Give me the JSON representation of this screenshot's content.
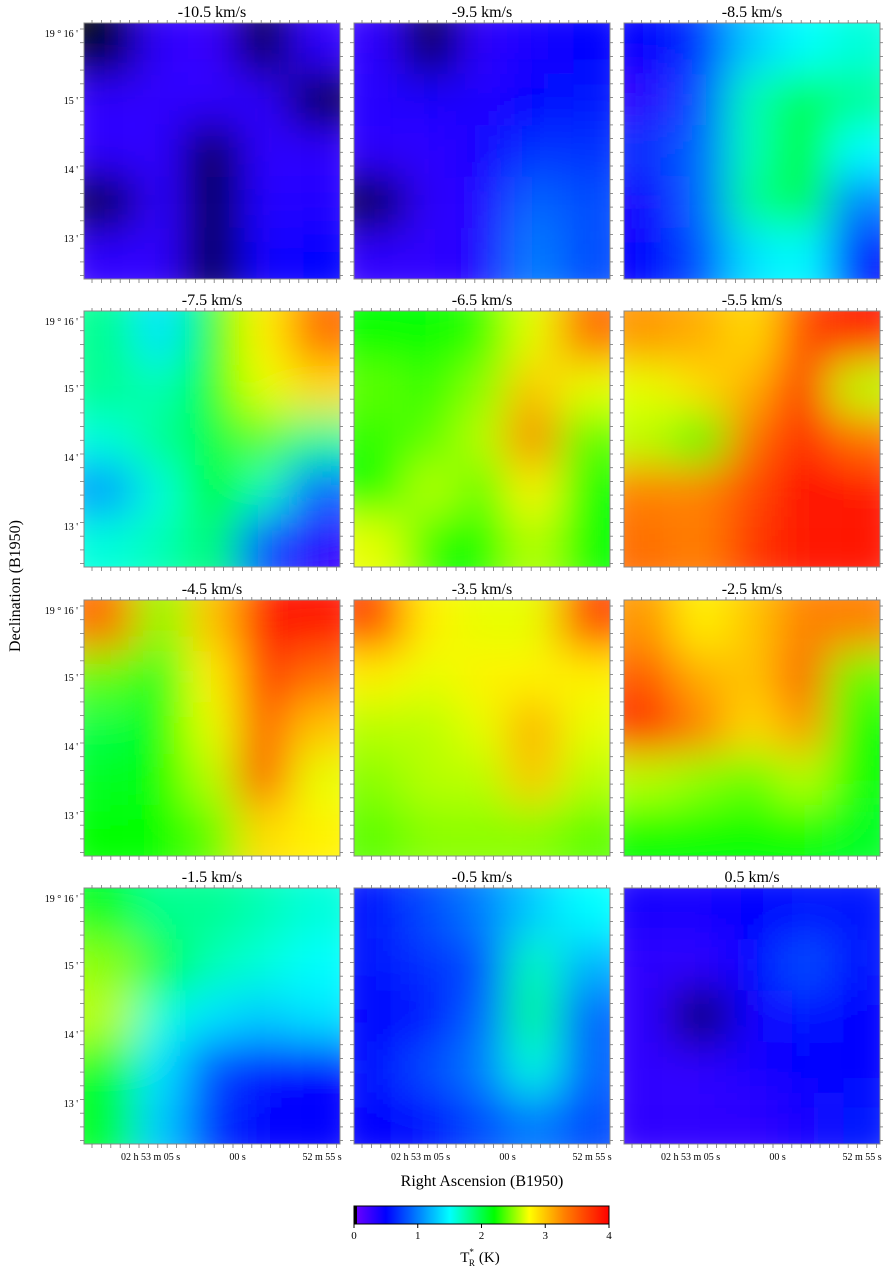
{
  "chart_data": {
    "type": "heatmap",
    "panel_titles": [
      "-10.5 km/s",
      "-9.5 km/s",
      "-8.5 km/s",
      "-7.5 km/s",
      "-6.5 km/s",
      "-5.5 km/s",
      "-4.5 km/s",
      "-3.5 km/s",
      "-2.5 km/s",
      "-1.5 km/s",
      "-0.5 km/s",
      "0.5 km/s"
    ],
    "xlabel": "Right Ascension  (B1950)",
    "ylabel": "Declination  (B1950)",
    "x_tick_labels": [
      "02 h 53 m 05 s",
      "00 s",
      "52 m 55 s"
    ],
    "y_tick_labels": [
      "19 ° 16 '",
      "15 '",
      "14 '",
      "13 '"
    ],
    "colorbar": {
      "label": "T*R  (K)",
      "label_main": "T",
      "label_sup": "*",
      "label_sub": "R",
      "label_unit": "(K)",
      "range": [
        0,
        4
      ],
      "tick_labels": [
        "0",
        "1",
        "2",
        "3",
        "4"
      ],
      "colormap": [
        "#000000",
        "#6600ff",
        "#0000ff",
        "#00ffff",
        "#00ff00",
        "#ffff00",
        "#ff8000",
        "#ff0000"
      ]
    },
    "grid_columns": [
      "east",
      "center-east",
      "center",
      "center-west",
      "west"
    ],
    "grid_rows": [
      "north",
      "upper",
      "middle",
      "lower",
      "south"
    ],
    "panels": [
      {
        "velocity": -10.5,
        "values": [
          [
            0.0,
            0.3,
            0.25,
            0.0,
            0.3
          ],
          [
            0.3,
            0.3,
            0.3,
            0.3,
            0.0
          ],
          [
            0.3,
            0.3,
            0.0,
            0.3,
            0.3
          ],
          [
            0.0,
            0.3,
            0.0,
            0.35,
            0.35
          ],
          [
            0.3,
            0.3,
            0.0,
            0.4,
            0.5
          ]
        ]
      },
      {
        "velocity": -9.5,
        "values": [
          [
            0.3,
            0.0,
            0.3,
            0.4,
            0.5
          ],
          [
            0.35,
            0.4,
            0.35,
            0.5,
            0.6
          ],
          [
            0.3,
            0.3,
            0.4,
            0.7,
            0.7
          ],
          [
            0.0,
            0.3,
            0.35,
            0.9,
            0.8
          ],
          [
            0.3,
            0.3,
            0.35,
            1.0,
            0.8
          ]
        ]
      },
      {
        "velocity": -8.5,
        "values": [
          [
            0.5,
            0.7,
            1.3,
            1.5,
            1.6
          ],
          [
            0.3,
            0.8,
            1.7,
            2.0,
            1.8
          ],
          [
            0.7,
            0.9,
            1.7,
            2.2,
            1.5
          ],
          [
            0.4,
            0.9,
            1.8,
            2.0,
            1.0
          ],
          [
            0.5,
            0.8,
            1.4,
            1.5,
            0.6
          ]
        ]
      },
      {
        "velocity": -7.5,
        "values": [
          [
            1.8,
            1.4,
            2.2,
            2.8,
            3.4
          ],
          [
            1.8,
            1.7,
            2.2,
            2.7,
            2.9
          ],
          [
            1.6,
            1.8,
            2.0,
            2.4,
            1.8
          ],
          [
            1.1,
            1.6,
            2.2,
            1.7,
            0.9
          ],
          [
            1.6,
            1.7,
            1.9,
            0.8,
            0.3
          ]
        ]
      },
      {
        "velocity": -6.5,
        "values": [
          [
            2.2,
            2.2,
            2.3,
            2.7,
            3.4
          ],
          [
            2.4,
            2.3,
            2.5,
            3.0,
            2.7
          ],
          [
            2.3,
            2.4,
            2.6,
            3.3,
            2.4
          ],
          [
            2.2,
            2.6,
            2.4,
            2.8,
            2.2
          ],
          [
            2.7,
            2.3,
            2.2,
            2.6,
            2.2
          ]
        ]
      },
      {
        "velocity": -5.5,
        "values": [
          [
            3.2,
            3.1,
            2.9,
            3.6,
            3.9
          ],
          [
            2.7,
            2.9,
            3.1,
            3.9,
            2.6
          ],
          [
            2.6,
            2.3,
            3.4,
            3.8,
            3.4
          ],
          [
            3.3,
            3.3,
            3.6,
            4.0,
            3.9
          ],
          [
            3.4,
            3.3,
            3.7,
            3.9,
            3.9
          ]
        ]
      },
      {
        "velocity": -4.5,
        "values": [
          [
            3.4,
            2.5,
            3.0,
            3.9,
            3.9
          ],
          [
            2.4,
            2.1,
            2.8,
            3.7,
            3.4
          ],
          [
            2.0,
            2.2,
            2.7,
            3.5,
            3.0
          ],
          [
            2.1,
            2.2,
            2.6,
            3.6,
            2.7
          ],
          [
            2.2,
            2.2,
            2.4,
            2.9,
            2.8
          ]
        ]
      },
      {
        "velocity": -3.5,
        "values": [
          [
            3.6,
            2.8,
            2.7,
            2.7,
            3.6
          ],
          [
            2.8,
            2.7,
            2.8,
            2.8,
            2.8
          ],
          [
            2.6,
            2.6,
            2.7,
            3.1,
            2.7
          ],
          [
            2.5,
            2.6,
            2.6,
            3.0,
            2.6
          ],
          [
            2.4,
            2.5,
            2.5,
            2.5,
            2.4
          ]
        ]
      },
      {
        "velocity": -2.5,
        "values": [
          [
            3.2,
            2.8,
            3.0,
            3.3,
            3.3
          ],
          [
            3.5,
            3.1,
            3.0,
            3.5,
            2.4
          ],
          [
            3.8,
            3.3,
            2.9,
            3.2,
            2.2
          ],
          [
            2.6,
            2.5,
            2.4,
            2.6,
            2.2
          ],
          [
            2.2,
            2.2,
            2.2,
            2.2,
            2.1
          ]
        ]
      },
      {
        "velocity": -1.5,
        "values": [
          [
            2.1,
            1.8,
            1.8,
            1.7,
            1.6
          ],
          [
            2.5,
            2.1,
            1.7,
            1.6,
            1.5
          ],
          [
            2.6,
            1.6,
            1.4,
            1.3,
            1.4
          ],
          [
            2.1,
            1.4,
            0.8,
            0.6,
            0.5
          ],
          [
            2.1,
            1.3,
            0.7,
            0.5,
            0.5
          ]
        ]
      },
      {
        "velocity": -0.5,
        "values": [
          [
            0.6,
            0.8,
            1.0,
            1.3,
            1.5
          ],
          [
            0.6,
            0.7,
            0.8,
            1.7,
            1.2
          ],
          [
            0.5,
            0.6,
            0.9,
            1.8,
            0.9
          ],
          [
            0.6,
            0.8,
            1.0,
            1.6,
            0.9
          ],
          [
            0.5,
            0.6,
            0.8,
            1.0,
            0.8
          ]
        ]
      },
      {
        "velocity": 0.5,
        "values": [
          [
            0.4,
            0.4,
            0.5,
            0.6,
            0.6
          ],
          [
            0.3,
            0.3,
            0.5,
            0.8,
            0.6
          ],
          [
            0.3,
            0.0,
            0.4,
            0.6,
            0.5
          ],
          [
            0.3,
            0.3,
            0.4,
            0.5,
            0.5
          ],
          [
            0.3,
            0.3,
            0.3,
            0.4,
            0.6
          ]
        ]
      }
    ]
  }
}
